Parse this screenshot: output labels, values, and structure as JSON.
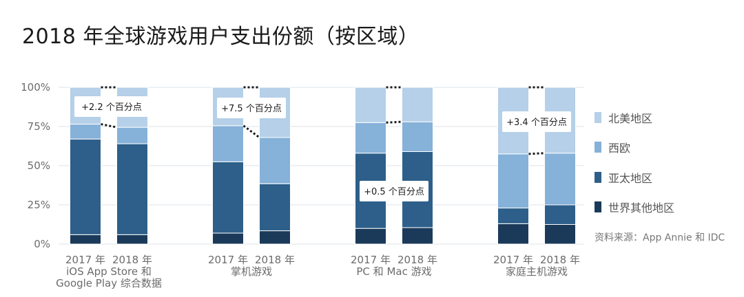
{
  "title": "2018 年全球游戏用户支出份额（按区域）",
  "source": "资料来源：App Annie 和 IDC",
  "colors": {
    "world_other": "#1b3a5a",
    "apac": "#2d5f8a",
    "west_europe": "#86b1d9",
    "north_america": "#b5d0e8",
    "grid": "#dde3ea",
    "connector": "#1a1a1a"
  },
  "chart_data": {
    "type": "bar",
    "stacked": true,
    "y_ticks": [
      "0%",
      "25%",
      "50%",
      "75%",
      "100%"
    ],
    "ylim": [
      0,
      100
    ],
    "groups": [
      {
        "label_lines": [
          "iOS App Store 和",
          "Google Play 综合数据"
        ],
        "bars": [
          {
            "year": "2017 年",
            "values": [
              6,
              61,
              9.5,
              23.5
            ]
          },
          {
            "year": "2018 年",
            "values": [
              6,
              58,
              10.5,
              25.5
            ]
          }
        ],
        "annotation": "+2.2 个百分点"
      },
      {
        "label_lines": [
          "掌机游戏"
        ],
        "bars": [
          {
            "year": "2017 年",
            "values": [
              7,
              45.5,
              23,
              24.5
            ]
          },
          {
            "year": "2018 年",
            "values": [
              8.5,
              30,
              29.5,
              32
            ]
          }
        ],
        "annotation": "+7.5 个百分点"
      },
      {
        "label_lines": [
          "PC 和 Mac 游戏"
        ],
        "bars": [
          {
            "year": "2017 年",
            "values": [
              10,
              48,
              19.5,
              22.5
            ]
          },
          {
            "year": "2018 年",
            "values": [
              10.5,
              48.5,
              19,
              22
            ]
          }
        ],
        "annotation": "+0.5 个百分点"
      },
      {
        "label_lines": [
          "家庭主机游戏"
        ],
        "bars": [
          {
            "year": "2017 年",
            "values": [
              13,
              10,
              34.5,
              42.5
            ]
          },
          {
            "year": "2018 年",
            "values": [
              12.5,
              12.5,
              33,
              42
            ]
          }
        ],
        "annotation": "+3.4 个百分点"
      }
    ],
    "legend": [
      "北美地区",
      "西欧",
      "亚太地区",
      "世界其他地区"
    ],
    "legend_position": "right"
  }
}
